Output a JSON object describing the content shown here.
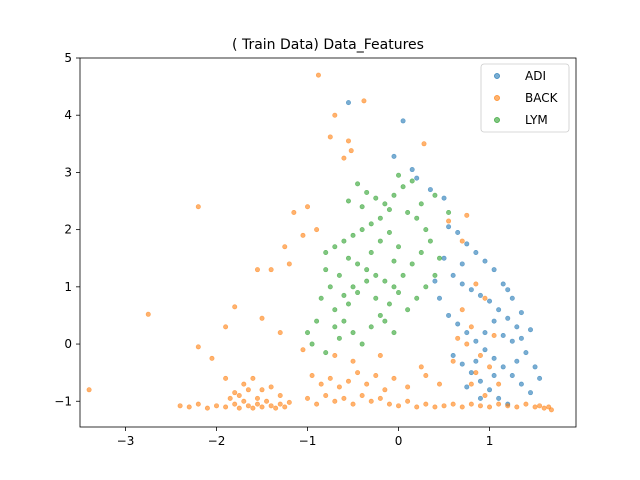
{
  "chart_data": {
    "type": "scatter",
    "title": "(  Train Data) Data_Features",
    "xlabel": "",
    "ylabel": "",
    "xlim": [
      -3.5,
      1.95
    ],
    "ylim": [
      -1.45,
      5.0
    ],
    "x_ticks": [
      -3,
      -2,
      -1,
      0,
      1
    ],
    "y_ticks": [
      -1,
      0,
      1,
      2,
      3,
      4,
      5
    ],
    "x_tick_labels": [
      "−3",
      "−2",
      "−1",
      "0",
      "1"
    ],
    "y_tick_labels": [
      "−1",
      "0",
      "1",
      "2",
      "3",
      "4",
      "5"
    ],
    "grid": false,
    "legend_position": "top-right",
    "series": [
      {
        "name": "ADI",
        "color": "#1f77b4",
        "points": [
          [
            -0.55,
            4.22
          ],
          [
            0.05,
            3.9
          ],
          [
            -0.05,
            3.28
          ],
          [
            0.15,
            3.05
          ],
          [
            0.2,
            2.9
          ],
          [
            0.35,
            2.7
          ],
          [
            0.5,
            2.55
          ],
          [
            0.55,
            2.05
          ],
          [
            0.65,
            1.95
          ],
          [
            0.75,
            1.75
          ],
          [
            0.85,
            1.6
          ],
          [
            0.95,
            1.45
          ],
          [
            1.05,
            1.3
          ],
          [
            1.15,
            1.05
          ],
          [
            1.25,
            0.8
          ],
          [
            0.6,
            1.2
          ],
          [
            0.7,
            1.05
          ],
          [
            0.8,
            0.95
          ],
          [
            0.9,
            0.85
          ],
          [
            1.0,
            0.75
          ],
          [
            1.1,
            0.6
          ],
          [
            1.2,
            0.45
          ],
          [
            1.3,
            0.3
          ],
          [
            1.35,
            0.1
          ],
          [
            1.4,
            -0.15
          ],
          [
            0.55,
            0.5
          ],
          [
            0.65,
            0.35
          ],
          [
            0.75,
            0.2
          ],
          [
            0.85,
            0.05
          ],
          [
            0.95,
            -0.1
          ],
          [
            1.05,
            -0.25
          ],
          [
            1.15,
            -0.4
          ],
          [
            1.25,
            -0.55
          ],
          [
            1.35,
            -0.7
          ],
          [
            1.45,
            -0.85
          ],
          [
            0.6,
            -0.2
          ],
          [
            0.7,
            -0.35
          ],
          [
            0.8,
            -0.5
          ],
          [
            0.9,
            -0.65
          ],
          [
            1.0,
            -0.8
          ],
          [
            1.1,
            -0.95
          ],
          [
            1.2,
            -1.05
          ],
          [
            1.05,
            0.4
          ],
          [
            0.95,
            0.2
          ],
          [
            1.15,
            0.15
          ],
          [
            1.25,
            0.05
          ],
          [
            0.85,
            -0.3
          ],
          [
            1.05,
            -0.55
          ],
          [
            1.3,
            -0.3
          ],
          [
            1.5,
            -0.4
          ],
          [
            1.55,
            -0.6
          ],
          [
            0.45,
            0.8
          ],
          [
            0.5,
            1.5
          ],
          [
            0.4,
            1.1
          ],
          [
            0.7,
            1.4
          ],
          [
            1.2,
            0.95
          ],
          [
            1.35,
            0.55
          ],
          [
            1.45,
            0.25
          ],
          [
            0.75,
            -0.75
          ],
          [
            0.9,
            -0.95
          ]
        ]
      },
      {
        "name": "BACK",
        "color": "#ff7f0e",
        "points": [
          [
            -0.88,
            4.7
          ],
          [
            -0.38,
            4.25
          ],
          [
            -0.7,
            4.0
          ],
          [
            -0.75,
            3.62
          ],
          [
            -0.55,
            3.55
          ],
          [
            -0.52,
            3.38
          ],
          [
            -0.6,
            3.25
          ],
          [
            0.28,
            3.5
          ],
          [
            -2.2,
            2.4
          ],
          [
            -1.0,
            2.4
          ],
          [
            -1.15,
            2.3
          ],
          [
            -0.9,
            2.0
          ],
          [
            -1.05,
            1.9
          ],
          [
            -1.25,
            1.7
          ],
          [
            -1.4,
            1.3
          ],
          [
            -1.2,
            1.4
          ],
          [
            -1.55,
            1.3
          ],
          [
            -2.75,
            0.52
          ],
          [
            -1.8,
            0.65
          ],
          [
            -1.9,
            0.3
          ],
          [
            -1.5,
            0.45
          ],
          [
            -1.3,
            0.2
          ],
          [
            -2.2,
            -0.05
          ],
          [
            -2.05,
            -0.25
          ],
          [
            -3.4,
            -0.8
          ],
          [
            0.55,
            2.15
          ],
          [
            0.75,
            2.25
          ],
          [
            0.7,
            1.8
          ],
          [
            0.85,
            1.05
          ],
          [
            0.95,
            0.8
          ],
          [
            0.7,
            0.6
          ],
          [
            0.8,
            0.3
          ],
          [
            0.75,
            0.0
          ],
          [
            0.9,
            -0.2
          ],
          [
            0.85,
            -0.5
          ],
          [
            1.0,
            -0.4
          ],
          [
            1.1,
            -0.7
          ],
          [
            0.95,
            -0.9
          ],
          [
            0.65,
            0.1
          ],
          [
            0.6,
            -0.3
          ],
          [
            1.05,
            0.15
          ],
          [
            0.8,
            -0.7
          ],
          [
            -2.3,
            -1.1
          ],
          [
            -2.2,
            -1.05
          ],
          [
            -2.1,
            -1.12
          ],
          [
            -2.0,
            -1.08
          ],
          [
            -1.9,
            -1.1
          ],
          [
            -1.8,
            -1.05
          ],
          [
            -1.75,
            -1.12
          ],
          [
            -1.7,
            -1.0
          ],
          [
            -1.65,
            -1.08
          ],
          [
            -1.6,
            -1.12
          ],
          [
            -1.55,
            -1.05
          ],
          [
            -1.5,
            -1.1
          ],
          [
            -1.45,
            -1.0
          ],
          [
            -1.4,
            -1.08
          ],
          [
            -1.35,
            -1.12
          ],
          [
            -1.3,
            -1.05
          ],
          [
            -1.25,
            -1.1
          ],
          [
            -1.2,
            -1.02
          ],
          [
            -1.7,
            -0.7
          ],
          [
            -1.6,
            -0.6
          ],
          [
            -1.5,
            -0.8
          ],
          [
            -1.8,
            -0.85
          ],
          [
            -1.4,
            -0.75
          ],
          [
            -1.9,
            -0.6
          ],
          [
            -1.75,
            -0.9
          ],
          [
            -1.55,
            -0.95
          ],
          [
            -1.65,
            -0.8
          ],
          [
            -1.85,
            -0.95
          ],
          [
            -1.0,
            -0.95
          ],
          [
            -0.9,
            -1.05
          ],
          [
            -0.8,
            -0.9
          ],
          [
            -0.7,
            -1.0
          ],
          [
            -0.6,
            -0.95
          ],
          [
            -0.5,
            -1.05
          ],
          [
            -0.4,
            -0.9
          ],
          [
            -0.3,
            -1.0
          ],
          [
            -0.2,
            -0.95
          ],
          [
            -0.1,
            -1.05
          ],
          [
            0.0,
            -1.08
          ],
          [
            0.1,
            -1.0
          ],
          [
            0.2,
            -1.1
          ],
          [
            0.3,
            -1.05
          ],
          [
            0.4,
            -1.1
          ],
          [
            0.5,
            -1.08
          ],
          [
            0.6,
            -1.05
          ],
          [
            0.7,
            -1.1
          ],
          [
            0.8,
            -1.05
          ],
          [
            0.9,
            -1.08
          ],
          [
            1.0,
            -1.1
          ],
          [
            1.1,
            -1.05
          ],
          [
            1.2,
            -1.08
          ],
          [
            1.3,
            -1.1
          ],
          [
            1.4,
            -1.05
          ],
          [
            1.5,
            -1.1
          ],
          [
            1.55,
            -1.08
          ],
          [
            1.6,
            -1.12
          ],
          [
            1.65,
            -1.1
          ],
          [
            1.68,
            -1.15
          ],
          [
            -0.95,
            -0.55
          ],
          [
            -0.85,
            -0.7
          ],
          [
            -0.75,
            -0.6
          ],
          [
            -0.65,
            -0.75
          ],
          [
            -0.55,
            -0.65
          ],
          [
            -0.45,
            -0.5
          ],
          [
            -0.35,
            -0.7
          ],
          [
            -0.25,
            -0.55
          ],
          [
            -0.15,
            -0.8
          ],
          [
            -0.05,
            -0.6
          ],
          [
            0.1,
            -0.75
          ],
          [
            0.3,
            -0.55
          ],
          [
            0.45,
            -0.7
          ],
          [
            -0.7,
            -0.2
          ],
          [
            -0.5,
            -0.3
          ],
          [
            -1.05,
            -0.1
          ],
          [
            -0.2,
            -0.2
          ],
          [
            0.25,
            -0.4
          ],
          [
            -1.3,
            -0.9
          ],
          [
            -2.4,
            -1.08
          ]
        ]
      },
      {
        "name": "LYM",
        "color": "#2ca02c",
        "points": [
          [
            -0.45,
            2.8
          ],
          [
            -0.35,
            2.65
          ],
          [
            -0.25,
            2.55
          ],
          [
            -0.15,
            2.45
          ],
          [
            -0.05,
            2.6
          ],
          [
            0.05,
            2.75
          ],
          [
            0.15,
            2.85
          ],
          [
            0.0,
            2.95
          ],
          [
            -0.1,
            2.35
          ],
          [
            -0.2,
            2.2
          ],
          [
            -0.3,
            2.1
          ],
          [
            -0.4,
            2.0
          ],
          [
            -0.5,
            1.9
          ],
          [
            -0.6,
            1.8
          ],
          [
            -0.7,
            1.7
          ],
          [
            -0.8,
            1.6
          ],
          [
            -0.55,
            1.5
          ],
          [
            -0.45,
            1.4
          ],
          [
            -0.35,
            1.3
          ],
          [
            -0.25,
            1.2
          ],
          [
            -0.15,
            1.1
          ],
          [
            -0.05,
            1.0
          ],
          [
            0.05,
            1.2
          ],
          [
            0.15,
            1.4
          ],
          [
            0.25,
            1.6
          ],
          [
            0.35,
            1.8
          ],
          [
            0.3,
            2.0
          ],
          [
            0.2,
            2.2
          ],
          [
            0.1,
            2.3
          ],
          [
            -0.65,
            1.2
          ],
          [
            -0.75,
            1.0
          ],
          [
            -0.85,
            0.8
          ],
          [
            -0.7,
            0.6
          ],
          [
            -0.6,
            0.4
          ],
          [
            -0.5,
            0.2
          ],
          [
            -0.4,
            0.0
          ],
          [
            -0.3,
            0.3
          ],
          [
            -0.2,
            0.5
          ],
          [
            -0.1,
            0.7
          ],
          [
            0.0,
            0.9
          ],
          [
            -0.9,
            0.4
          ],
          [
            -1.0,
            0.2
          ],
          [
            -0.95,
            0.0
          ],
          [
            -0.8,
            -0.15
          ],
          [
            -0.65,
            0.1
          ],
          [
            -0.55,
            0.7
          ],
          [
            -0.45,
            0.9
          ],
          [
            -0.35,
            1.1
          ],
          [
            -0.25,
            0.8
          ],
          [
            -0.15,
            0.4
          ],
          [
            -0.05,
            0.2
          ],
          [
            0.1,
            0.6
          ],
          [
            0.2,
            0.8
          ],
          [
            0.3,
            1.0
          ],
          [
            0.4,
            1.2
          ],
          [
            0.45,
            1.5
          ],
          [
            -0.4,
            2.4
          ],
          [
            -0.3,
            1.6
          ],
          [
            -0.2,
            1.8
          ],
          [
            -0.1,
            1.95
          ],
          [
            0.0,
            1.7
          ],
          [
            -0.5,
            1.0
          ],
          [
            -0.6,
            0.85
          ],
          [
            -0.7,
            0.3
          ],
          [
            -0.8,
            1.3
          ],
          [
            0.25,
            2.45
          ],
          [
            0.4,
            2.6
          ],
          [
            0.55,
            2.3
          ],
          [
            -0.55,
            2.5
          ],
          [
            -0.05,
            1.45
          ]
        ]
      }
    ]
  }
}
